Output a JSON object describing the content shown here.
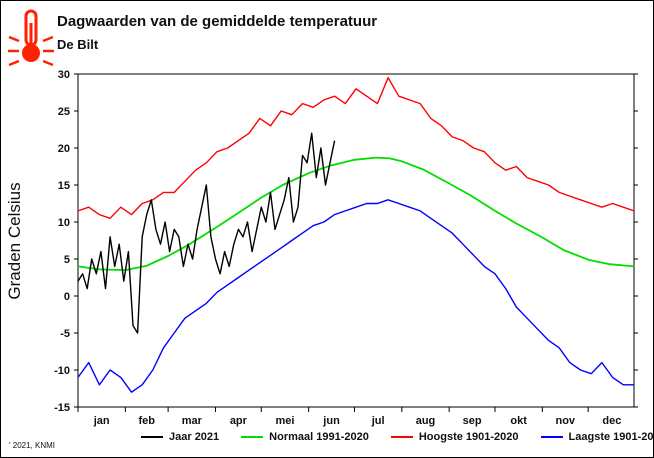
{
  "header": {
    "title": "Dagwaarden van de gemiddelde temperatuur",
    "subtitle": "De Bilt"
  },
  "footer": {
    "credit": "' 2021, KNMI"
  },
  "icons": {
    "thermometer": "thermometer-icon"
  },
  "colors": {
    "jaar": "#000000",
    "normaal": "#00dd00",
    "hoogste": "#ff0000",
    "laagste": "#0000ff",
    "icon": "#ff2200"
  },
  "chart_data": {
    "type": "line",
    "title": "Dagwaarden van de gemiddelde temperatuur",
    "subtitle": "De Bilt",
    "ylabel": "Graden Celsius",
    "xlabel": "",
    "ylim": [
      -15,
      30
    ],
    "yticks": [
      -15,
      -10,
      -5,
      0,
      5,
      10,
      15,
      20,
      25,
      30
    ],
    "x_unit": "day of year",
    "xlim": [
      1,
      365
    ],
    "months": [
      "jan",
      "feb",
      "mar",
      "apr",
      "mei",
      "jun",
      "jul",
      "aug",
      "sep",
      "okt",
      "nov",
      "dec"
    ],
    "month_starts": [
      1,
      32,
      60,
      91,
      121,
      152,
      182,
      213,
      244,
      274,
      305,
      335
    ],
    "grid": false,
    "legend_position": "bottom",
    "series": [
      {
        "name": "Jaar 2021",
        "color": "#000000",
        "x": [
          1,
          4,
          7,
          10,
          13,
          16,
          19,
          22,
          25,
          28,
          31,
          34,
          37,
          40,
          43,
          46,
          49,
          52,
          55,
          58,
          61,
          64,
          67,
          70,
          73,
          76,
          79,
          82,
          85,
          88,
          91,
          94,
          97,
          100,
          103,
          106,
          109,
          112,
          115,
          118,
          121,
          124,
          127,
          130,
          133,
          136,
          139,
          142,
          145,
          148,
          151,
          154,
          157,
          160,
          163,
          166,
          169
        ],
        "y": [
          2,
          3,
          1,
          5,
          3,
          6,
          1,
          8,
          4,
          7,
          2,
          6,
          -4,
          -5,
          8,
          11,
          13,
          9,
          7,
          10,
          6,
          9,
          8,
          4,
          7,
          5,
          9,
          12,
          15,
          8,
          5,
          3,
          6,
          4,
          7,
          9,
          8,
          10,
          6,
          9,
          12,
          10,
          14,
          9,
          11,
          13,
          16,
          10,
          12,
          19,
          18,
          22,
          16,
          20,
          15,
          18,
          21
        ]
      },
      {
        "name": "Normaal 1991-2020",
        "color": "#00dd00",
        "x": [
          1,
          15,
          32,
          46,
          60,
          74,
          91,
          105,
          121,
          135,
          152,
          166,
          182,
          196,
          205,
          213,
          227,
          244,
          258,
          274,
          288,
          305,
          319,
          335,
          349,
          365
        ],
        "y": [
          4.0,
          3.6,
          3.5,
          4.1,
          5.4,
          7.0,
          9.2,
          11.1,
          13.3,
          15.0,
          16.6,
          17.6,
          18.4,
          18.7,
          18.6,
          18.2,
          17.1,
          15.2,
          13.6,
          11.5,
          9.8,
          7.9,
          6.2,
          4.9,
          4.3,
          4.0
        ]
      },
      {
        "name": "Hoogste 1901-2020",
        "color": "#ff0000",
        "x": [
          1,
          8,
          15,
          22,
          29,
          36,
          43,
          50,
          57,
          64,
          71,
          78,
          85,
          92,
          99,
          106,
          113,
          120,
          127,
          134,
          141,
          148,
          155,
          162,
          169,
          176,
          183,
          190,
          197,
          204,
          211,
          218,
          225,
          232,
          239,
          246,
          253,
          260,
          267,
          274,
          281,
          288,
          295,
          302,
          309,
          316,
          323,
          330,
          337,
          344,
          351,
          358,
          365
        ],
        "y": [
          11.5,
          12,
          11,
          10.5,
          12,
          11,
          12.5,
          13,
          14,
          14,
          15.5,
          17,
          18,
          19.5,
          20,
          21,
          22,
          24,
          23,
          25,
          24.5,
          26,
          25.5,
          26.5,
          27,
          26,
          28,
          27,
          26,
          29.5,
          27,
          26.5,
          26,
          24,
          23,
          21.5,
          21,
          20,
          19.5,
          18,
          17,
          17.5,
          16,
          15.5,
          15,
          14,
          13.5,
          13,
          12.5,
          12,
          12.5,
          12,
          11.5
        ]
      },
      {
        "name": "Laagste 1901-2020",
        "color": "#0000ff",
        "x": [
          1,
          8,
          15,
          22,
          29,
          36,
          43,
          50,
          57,
          64,
          71,
          78,
          85,
          92,
          99,
          106,
          113,
          120,
          127,
          134,
          141,
          148,
          155,
          162,
          169,
          176,
          183,
          190,
          197,
          204,
          211,
          218,
          225,
          232,
          239,
          246,
          253,
          260,
          267,
          274,
          281,
          288,
          295,
          302,
          309,
          316,
          323,
          330,
          337,
          344,
          351,
          358,
          365
        ],
        "y": [
          -11,
          -9,
          -12,
          -10,
          -11,
          -13,
          -12,
          -10,
          -7,
          -5,
          -3,
          -2,
          -1,
          0.5,
          1.5,
          2.5,
          3.5,
          4.5,
          5.5,
          6.5,
          7.5,
          8.5,
          9.5,
          10,
          11,
          11.5,
          12,
          12.5,
          12.5,
          13,
          12.5,
          12,
          11.5,
          10.5,
          9.5,
          8.5,
          7,
          5.5,
          4,
          3,
          1,
          -1.5,
          -3,
          -4.5,
          -6,
          -7,
          -9,
          -10,
          -10.5,
          -9,
          -11,
          -12,
          -12
        ]
      }
    ]
  }
}
